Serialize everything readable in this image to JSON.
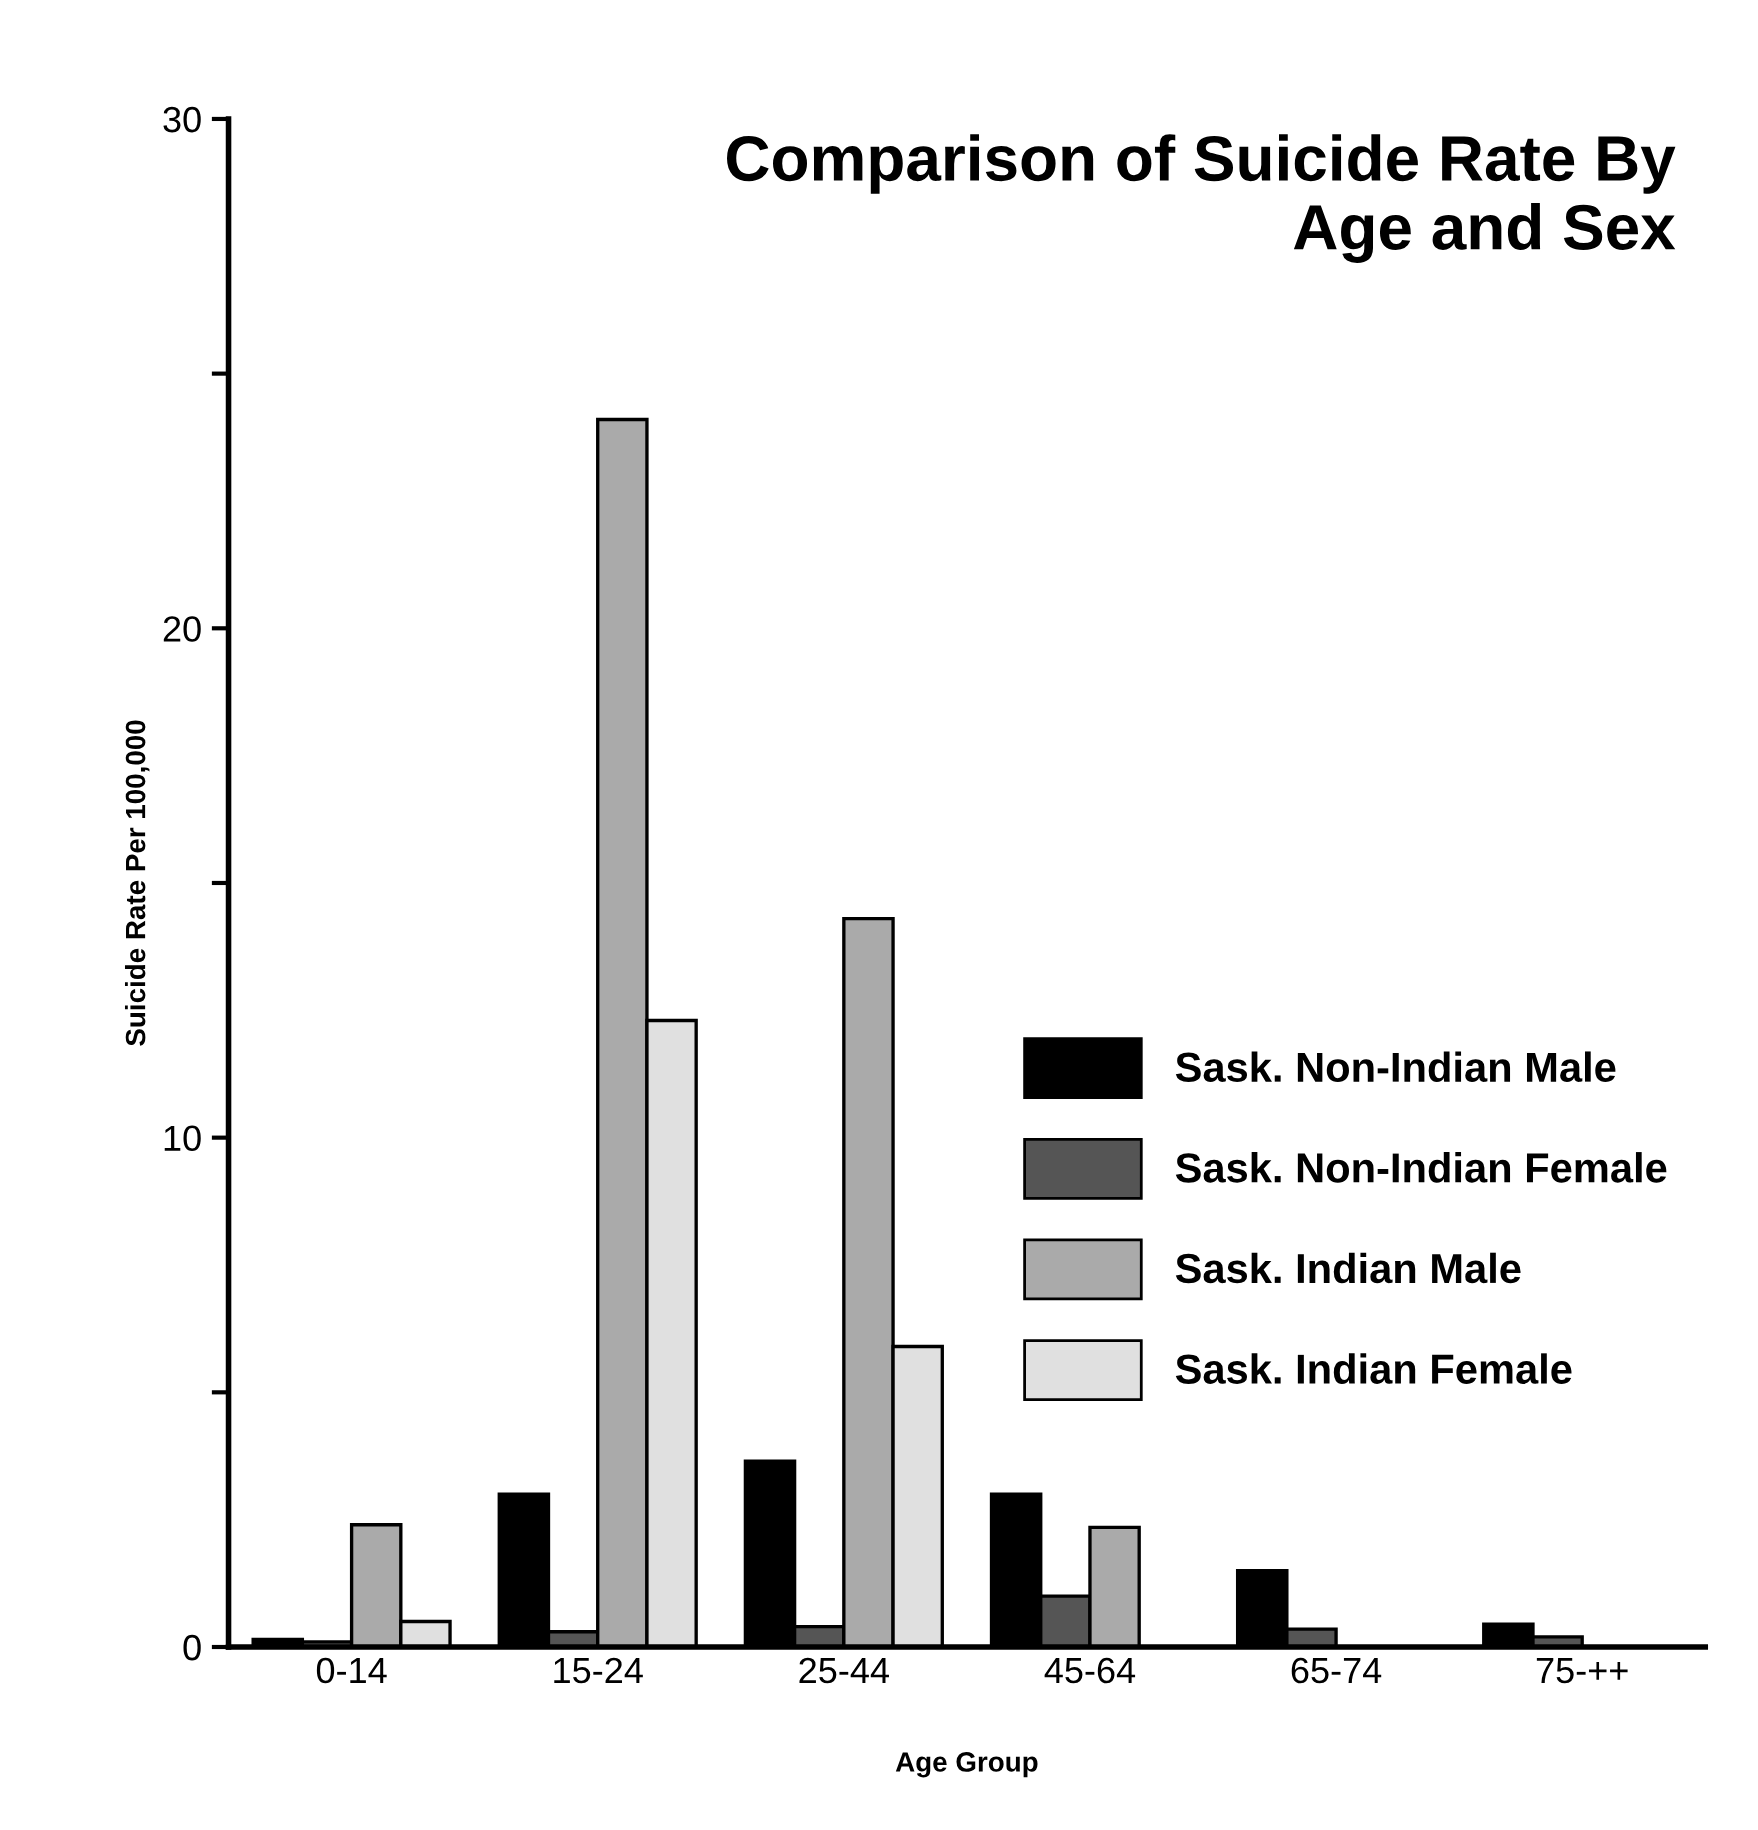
{
  "chart_data": {
    "type": "bar",
    "title": "Comparison of Suicide Rate By\nAge and Sex",
    "xlabel": "Age Group",
    "ylabel": "Suicide Rate Per 100,000",
    "categories": [
      "0-14",
      "15-24",
      "25-44",
      "45-64",
      "65-74",
      "75-++"
    ],
    "series": [
      {
        "name": "Sask. Non-Indian Male",
        "color": "#000000",
        "values": [
          0.15,
          3.0,
          3.65,
          3.0,
          1.5,
          0.45
        ]
      },
      {
        "name": "Sask. Non-Indian Female",
        "color": "#555555",
        "values": [
          0.1,
          0.3,
          0.4,
          1.0,
          0.35,
          0.2
        ]
      },
      {
        "name": "Sask. Indian Male",
        "color": "#aaaaaa",
        "values": [
          2.4,
          24.1,
          14.3,
          2.35,
          null,
          null
        ]
      },
      {
        "name": "Sask. Indian Female",
        "color": "#e0e0e0",
        "values": [
          0.5,
          12.3,
          5.9,
          null,
          null,
          null
        ]
      }
    ],
    "ylim": [
      0,
      30
    ],
    "yticks": [
      0,
      {
        "value": 5,
        "label": null
      },
      10,
      {
        "value": 15,
        "label": null
      },
      20,
      {
        "value": 25,
        "label": null
      },
      30
    ],
    "grid": false,
    "legend": "right"
  }
}
